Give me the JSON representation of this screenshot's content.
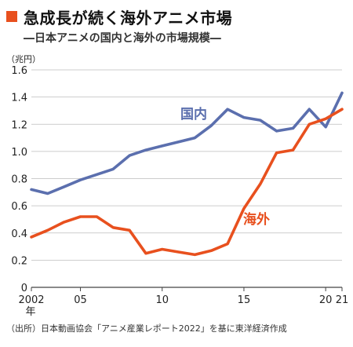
{
  "title": "急成長が続く海外アニメ市場",
  "subtitle": "―日本アニメの国内と海外の市場規模―",
  "source": "（出所）日本動画協会「アニメ産業レポート2022」を基に東洋経済作成",
  "colors": {
    "accent": "#e8501e",
    "domestic": "#5b6fae",
    "overseas": "#e8501e"
  },
  "chart_data": {
    "type": "line",
    "yunit": "（兆円）",
    "ylim": [
      0,
      1.6
    ],
    "yticks": [
      "0",
      "0.2",
      "0.4",
      "0.6",
      "0.8",
      "1.0",
      "1.2",
      "1.4",
      "1.6"
    ],
    "xlim": [
      2002,
      2021
    ],
    "xticks": [
      {
        "x": 2002,
        "label": "2002"
      },
      {
        "x": 2005,
        "label": "05"
      },
      {
        "x": 2010,
        "label": "10"
      },
      {
        "x": 2015,
        "label": "15"
      },
      {
        "x": 2020,
        "label": "20"
      },
      {
        "x": 2021,
        "label": "21"
      }
    ],
    "xsuffix": "年",
    "grid": true,
    "x": [
      2002,
      2003,
      2004,
      2005,
      2006,
      2007,
      2008,
      2009,
      2010,
      2011,
      2012,
      2013,
      2014,
      2015,
      2016,
      2017,
      2018,
      2019,
      2020,
      2021
    ],
    "series": [
      {
        "name": "国内",
        "key": "domestic",
        "values": [
          0.72,
          0.69,
          0.74,
          0.79,
          0.83,
          0.87,
          0.97,
          1.01,
          1.04,
          1.07,
          1.1,
          1.19,
          1.31,
          1.25,
          1.23,
          1.15,
          1.17,
          1.31,
          1.18,
          1.43
        ]
      },
      {
        "name": "海外",
        "key": "overseas",
        "values": [
          0.37,
          0.42,
          0.48,
          0.52,
          0.52,
          0.44,
          0.42,
          0.25,
          0.28,
          0.26,
          0.24,
          0.27,
          0.32,
          0.58,
          0.76,
          0.99,
          1.01,
          1.2,
          1.24,
          1.31
        ]
      }
    ]
  }
}
